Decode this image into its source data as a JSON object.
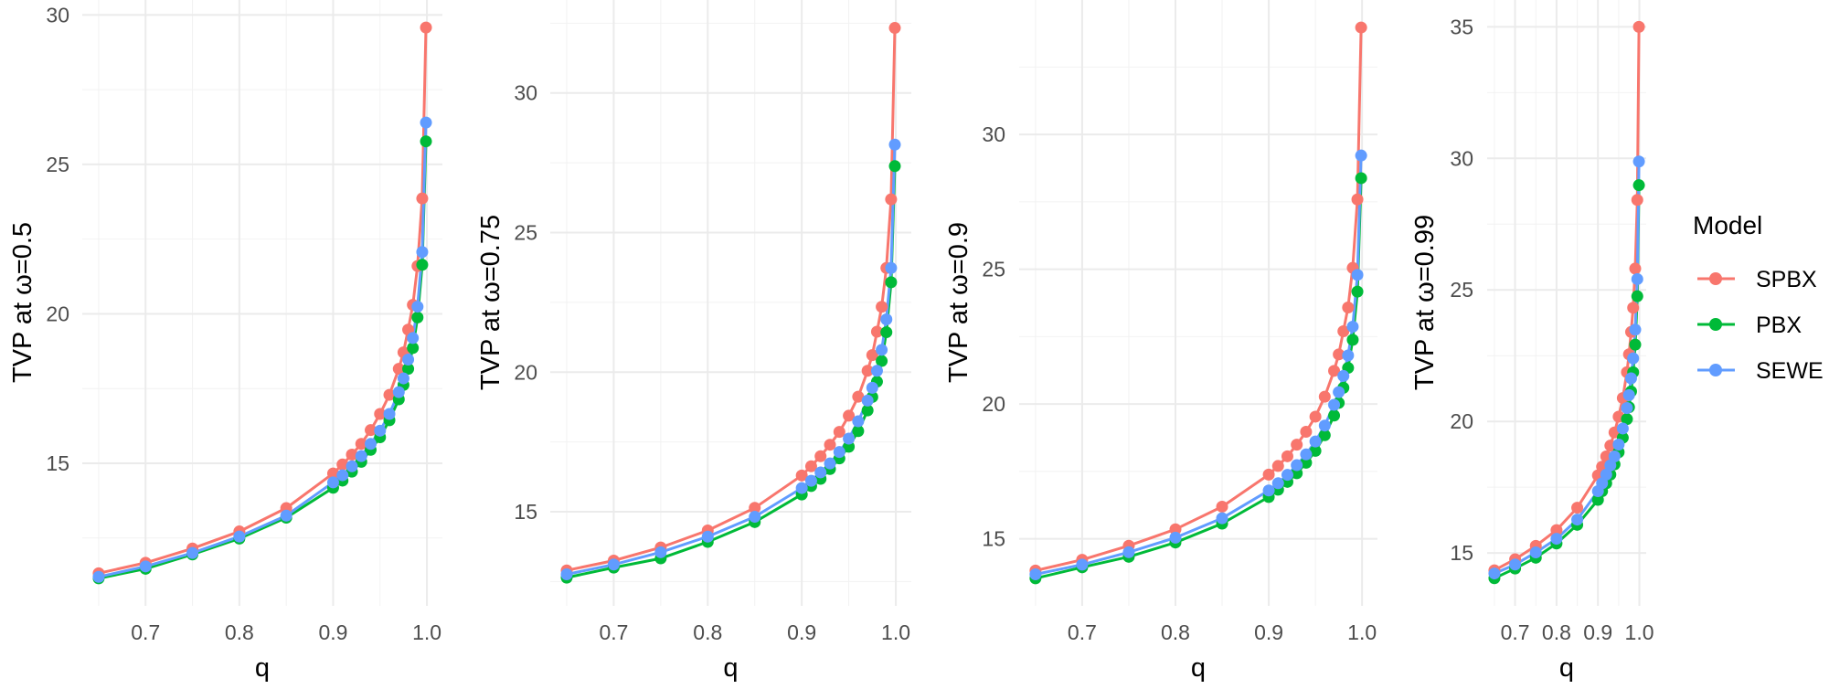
{
  "chart_data": [
    {
      "type": "line",
      "xlabel": "q",
      "ylabel": "TVP at ω=0.5",
      "xlim": [
        0.6325,
        1.0165
      ],
      "ylim": [
        10.23,
        30.5
      ],
      "xticks": [
        "0.7",
        "0.8",
        "0.9",
        "1.0"
      ],
      "xtick_values": [
        0.7,
        0.8,
        0.9,
        1.0
      ],
      "yticks": [
        "15",
        "20",
        "25",
        "30"
      ],
      "ytick_values": [
        15,
        20,
        25,
        30
      ],
      "grid": true,
      "x": [
        0.65,
        0.7,
        0.75,
        0.8,
        0.85,
        0.9,
        0.91,
        0.92,
        0.93,
        0.94,
        0.95,
        0.96,
        0.97,
        0.975,
        0.98,
        0.985,
        0.99,
        0.995,
        0.999
      ],
      "series": [
        {
          "name": "SPBX",
          "color": "#F8766D",
          "values": [
            11.32,
            11.67,
            12.15,
            12.72,
            13.5,
            14.66,
            14.96,
            15.29,
            15.65,
            16.11,
            16.65,
            17.29,
            18.16,
            18.71,
            19.47,
            20.3,
            21.6,
            23.86,
            29.58
          ]
        },
        {
          "name": "PBX",
          "color": "#00BA38",
          "values": [
            11.15,
            11.47,
            11.95,
            12.48,
            13.18,
            14.18,
            14.42,
            14.72,
            15.05,
            15.45,
            15.87,
            16.44,
            17.14,
            17.62,
            18.16,
            18.86,
            19.88,
            21.64,
            25.77
          ]
        },
        {
          "name": "SEWE",
          "color": "#619CFF",
          "values": [
            11.2,
            11.55,
            12.0,
            12.55,
            13.25,
            14.36,
            14.6,
            14.9,
            15.24,
            15.65,
            16.09,
            16.65,
            17.38,
            17.84,
            18.47,
            19.19,
            20.24,
            22.07,
            26.4
          ]
        }
      ]
    },
    {
      "type": "line",
      "xlabel": "q",
      "ylabel": "TVP at ω=0.75",
      "xlim": [
        0.6325,
        1.0165
      ],
      "ylim": [
        11.63,
        33.33
      ],
      "xticks": [
        "0.7",
        "0.8",
        "0.9",
        "1.0"
      ],
      "xtick_values": [
        0.7,
        0.8,
        0.9,
        1.0
      ],
      "yticks": [
        "15",
        "20",
        "25",
        "30"
      ],
      "ytick_values": [
        15,
        20,
        25,
        30
      ],
      "grid": true,
      "x": [
        0.65,
        0.7,
        0.75,
        0.8,
        0.85,
        0.9,
        0.91,
        0.92,
        0.93,
        0.94,
        0.95,
        0.96,
        0.97,
        0.975,
        0.98,
        0.985,
        0.99,
        0.995,
        0.999
      ],
      "series": [
        {
          "name": "SPBX",
          "color": "#F8766D",
          "values": [
            12.9,
            13.25,
            13.72,
            14.33,
            15.14,
            16.3,
            16.63,
            16.99,
            17.4,
            17.86,
            18.44,
            19.12,
            20.05,
            20.61,
            21.45,
            22.34,
            23.73,
            26.19,
            32.33
          ]
        },
        {
          "name": "PBX",
          "color": "#00BA38",
          "values": [
            12.64,
            13.0,
            13.33,
            13.92,
            14.63,
            15.62,
            15.92,
            16.18,
            16.53,
            16.91,
            17.33,
            17.89,
            18.63,
            19.11,
            19.66,
            20.4,
            21.43,
            23.22,
            27.38
          ]
        },
        {
          "name": "SEWE",
          "color": "#619CFF",
          "values": [
            12.76,
            13.11,
            13.55,
            14.11,
            14.82,
            15.85,
            16.11,
            16.41,
            16.73,
            17.14,
            17.62,
            18.24,
            18.98,
            19.44,
            20.05,
            20.8,
            21.89,
            23.73,
            28.15
          ]
        }
      ]
    },
    {
      "type": "line",
      "xlabel": "q",
      "ylabel": "TVP at ω=0.9",
      "xlim": [
        0.6325,
        1.0165
      ],
      "ylim": [
        12.51,
        34.99
      ],
      "xticks": [
        "0.7",
        "0.8",
        "0.9",
        "1.0"
      ],
      "xtick_values": [
        0.7,
        0.8,
        0.9,
        1.0
      ],
      "yticks": [
        "15",
        "20",
        "25",
        "30"
      ],
      "ytick_values": [
        15,
        20,
        25,
        30
      ],
      "grid": true,
      "x": [
        0.65,
        0.7,
        0.75,
        0.8,
        0.85,
        0.9,
        0.91,
        0.92,
        0.93,
        0.94,
        0.95,
        0.96,
        0.97,
        0.975,
        0.98,
        0.985,
        0.99,
        0.995,
        0.999
      ],
      "series": [
        {
          "name": "SPBX",
          "color": "#F8766D",
          "values": [
            13.82,
            14.22,
            14.74,
            15.35,
            16.19,
            17.38,
            17.7,
            18.06,
            18.49,
            18.97,
            19.53,
            20.27,
            21.23,
            21.84,
            22.7,
            23.58,
            25.05,
            27.59,
            33.97
          ]
        },
        {
          "name": "PBX",
          "color": "#00BA38",
          "values": [
            13.53,
            13.94,
            14.33,
            14.86,
            15.56,
            16.55,
            16.82,
            17.11,
            17.43,
            17.82,
            18.26,
            18.84,
            19.57,
            20.04,
            20.6,
            21.34,
            22.38,
            24.17,
            28.38
          ]
        },
        {
          "name": "SEWE",
          "color": "#619CFF",
          "values": [
            13.68,
            14.04,
            14.5,
            15.04,
            15.76,
            16.79,
            17.06,
            17.37,
            17.73,
            18.13,
            18.61,
            19.2,
            19.97,
            20.44,
            21.04,
            21.8,
            22.87,
            24.79,
            29.22
          ]
        }
      ]
    },
    {
      "type": "line",
      "xlabel": "q",
      "ylabel": "TVP at ω=0.99",
      "xlim": [
        0.6325,
        1.0165
      ],
      "ylim": [
        12.99,
        36.02
      ],
      "xticks": [
        "0.7",
        "0.8",
        "0.9",
        "1.0"
      ],
      "xtick_values": [
        0.7,
        0.8,
        0.9,
        1.0
      ],
      "yticks": [
        "15",
        "20",
        "25",
        "30",
        "35"
      ],
      "ytick_values": [
        15,
        20,
        25,
        30,
        35
      ],
      "grid": true,
      "x": [
        0.65,
        0.7,
        0.75,
        0.8,
        0.85,
        0.9,
        0.91,
        0.92,
        0.93,
        0.94,
        0.95,
        0.96,
        0.97,
        0.975,
        0.98,
        0.985,
        0.99,
        0.995,
        0.999
      ],
      "series": [
        {
          "name": "SPBX",
          "color": "#F8766D",
          "values": [
            14.34,
            14.76,
            15.27,
            15.87,
            16.72,
            17.95,
            18.28,
            18.67,
            19.08,
            19.58,
            20.18,
            20.89,
            21.87,
            22.55,
            23.4,
            24.32,
            25.81,
            28.42,
            35.0
          ]
        },
        {
          "name": "PBX",
          "color": "#00BA38",
          "values": [
            14.04,
            14.41,
            14.82,
            15.36,
            16.07,
            17.02,
            17.35,
            17.65,
            17.98,
            18.37,
            18.83,
            19.38,
            20.09,
            20.54,
            21.14,
            21.87,
            22.92,
            24.76,
            28.98
          ]
        },
        {
          "name": "SEWE",
          "color": "#619CFF",
          "values": [
            14.22,
            14.56,
            15.02,
            15.54,
            16.27,
            17.35,
            17.65,
            17.98,
            18.33,
            18.67,
            19.12,
            19.73,
            20.51,
            21.0,
            21.64,
            22.4,
            23.49,
            25.41,
            29.88
          ]
        }
      ]
    }
  ],
  "legend": {
    "title": "Model",
    "position": "right",
    "items": [
      {
        "label": "SPBX",
        "color": "#F8766D"
      },
      {
        "label": "PBX",
        "color": "#00BA38"
      },
      {
        "label": "SEWE",
        "color": "#619CFF"
      }
    ]
  }
}
